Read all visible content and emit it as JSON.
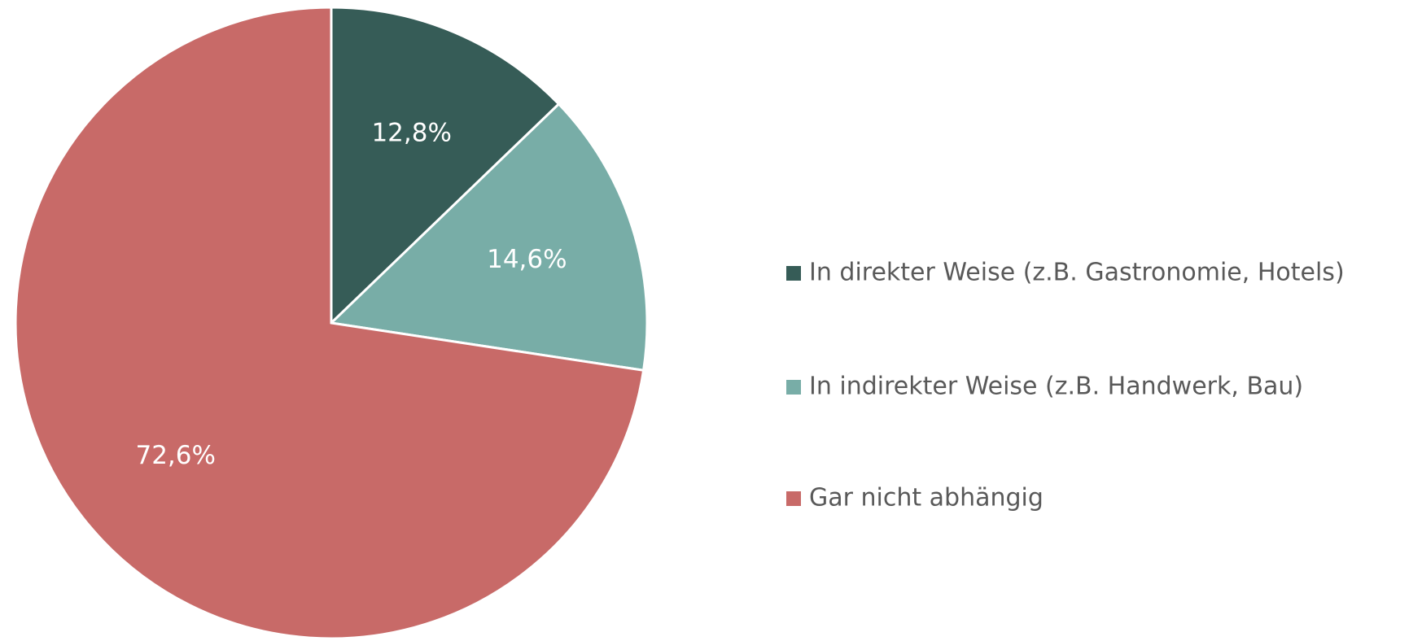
{
  "chart_data": {
    "type": "pie",
    "categories": [
      "In direkter Weise (z.B. Gastronomie, Hotels)",
      "In indirekter Weise (z.B. Handwerk, Bau)",
      "Gar nicht abhängig"
    ],
    "values": [
      12.8,
      14.6,
      72.6
    ],
    "value_labels": [
      "12,8%",
      "14,6%",
      "72,6%"
    ],
    "colors": [
      "#365c57",
      "#78ada7",
      "#c86a68"
    ],
    "legend": "right"
  }
}
